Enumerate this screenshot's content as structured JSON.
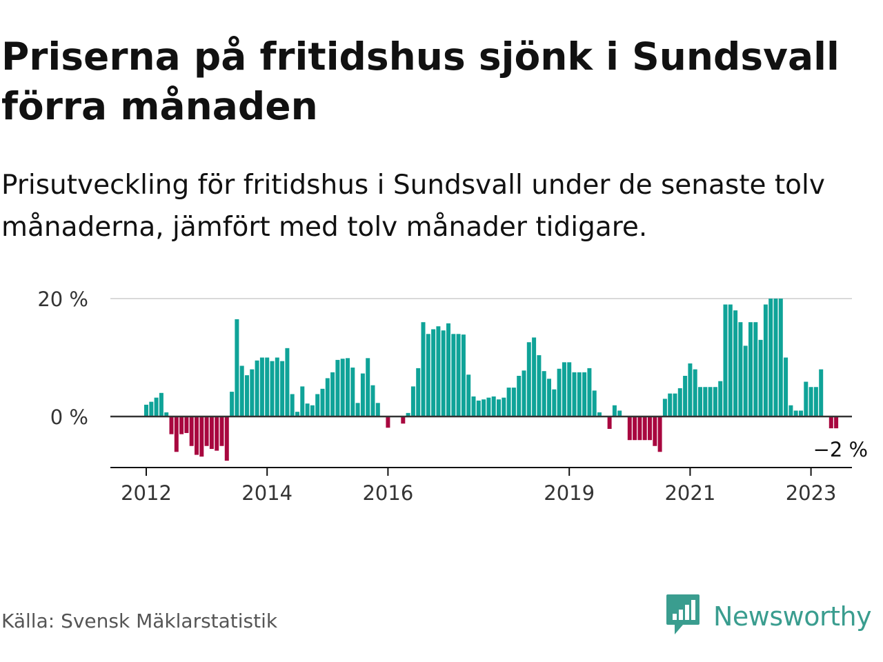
{
  "title": "Priserna på fritidshus sjönk i Sundsvall förra månaden",
  "subtitle": "Prisutveckling för fritidshus i Sundsvall under de senaste tolv månaderna, jämfört med tolv månader tidigare.",
  "source": "Källa: Svensk Mäklarstatistik",
  "brand": {
    "name": "Newsworthy",
    "icon": "newsworthy-logo-icon"
  },
  "colors": {
    "positive": "#0fa398",
    "negative": "#a8073f",
    "axis": "#111111",
    "grid": "#d9d9d9"
  },
  "chart_data": {
    "type": "bar",
    "ylabel": "",
    "xlabel": "",
    "ylim": [
      -8.5,
      20
    ],
    "y_ticks": [
      {
        "value": 0,
        "label": "0 %"
      },
      {
        "value": 20,
        "label": "20 %"
      }
    ],
    "x_ticks": [
      {
        "label": "2012",
        "index": 0
      },
      {
        "label": "2014",
        "index": 24
      },
      {
        "label": "2016",
        "index": 48
      },
      {
        "label": "2019",
        "index": 84
      },
      {
        "label": "2021",
        "index": 108
      },
      {
        "label": "2023",
        "index": 132
      }
    ],
    "start": "2012-01",
    "end": "2023-03",
    "last_value_label": "−2 %",
    "values": [
      2,
      2.5,
      3.2,
      4,
      0.7,
      -3,
      -6,
      -3,
      -2.8,
      -5,
      -6.5,
      -6.8,
      -5,
      -5.5,
      -5.8,
      -5,
      -7.5,
      4.2,
      16.5,
      8.6,
      7,
      8,
      9.5,
      10,
      10,
      9.4,
      10,
      9.4,
      11.6,
      3.8,
      0.8,
      5.1,
      2.2,
      1.9,
      3.8,
      4.7,
      6.5,
      7.5,
      9.6,
      9.8,
      9.9,
      8.3,
      2.3,
      7.3,
      9.9,
      5.3,
      2.3,
      0,
      -1.9,
      0,
      0,
      -1.2,
      0.6,
      5.1,
      8.2,
      16,
      14,
      14.8,
      15.3,
      14.6,
      15.8,
      14,
      14,
      13.9,
      7.1,
      3.4,
      2.7,
      2.9,
      3.2,
      3.4,
      2.9,
      3.2,
      4.9,
      4.9,
      6.9,
      7.8,
      12.6,
      13.4,
      10.4,
      7.7,
      6.4,
      4.6,
      8.1,
      9.2,
      9.2,
      7.5,
      7.5,
      7.5,
      8.2,
      4.4,
      0.7,
      0,
      -2.1,
      1.9,
      1,
      0,
      -4,
      -4,
      -4,
      -4,
      -4,
      -5,
      -6,
      3,
      3.9,
      3.9,
      4.8,
      6.9,
      9,
      8,
      5,
      5,
      5,
      5,
      6,
      19,
      19,
      18,
      16,
      12,
      16,
      16,
      13,
      19,
      20,
      20,
      20,
      10,
      1.9,
      1,
      1,
      5.9,
      5,
      5,
      8,
      0,
      -2,
      -2
    ]
  }
}
